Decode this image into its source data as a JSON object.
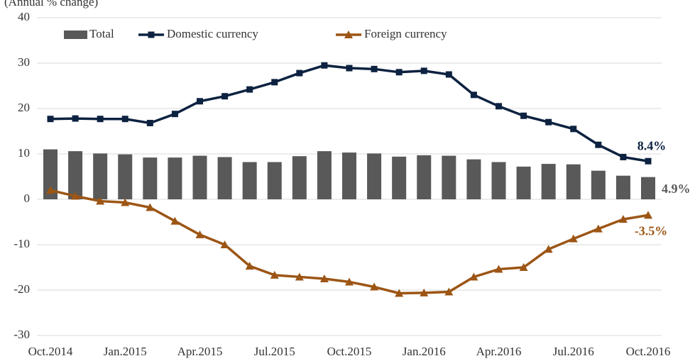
{
  "chart_data": {
    "type": "bar",
    "subtitle": "(Annual % change)",
    "categories": [
      "Oct.2014",
      null,
      null,
      "Jan.2015",
      null,
      null,
      "Apr.2015",
      null,
      null,
      "Jul.2015",
      null,
      null,
      "Oct.2015",
      null,
      null,
      "Jan.2016",
      null,
      null,
      "Apr.2016",
      null,
      null,
      "Jul.2016",
      null,
      null,
      "Oct.2016"
    ],
    "series": [
      {
        "name": "Total",
        "type": "bar",
        "color": "#595959",
        "values": [
          11.0,
          10.6,
          10.1,
          9.9,
          9.2,
          9.2,
          9.6,
          9.3,
          8.2,
          8.2,
          9.5,
          10.6,
          10.3,
          10.1,
          9.4,
          9.7,
          9.6,
          8.8,
          8.2,
          7.2,
          7.8,
          7.7,
          6.3,
          5.2,
          4.9
        ],
        "value_labels": [
          null,
          null,
          null,
          null,
          null,
          null,
          null,
          null,
          null,
          null,
          null,
          null,
          null,
          null,
          null,
          null,
          null,
          null,
          null,
          null,
          null,
          null,
          null,
          null,
          "4.9%"
        ]
      },
      {
        "name": "Domestic currency",
        "type": "line",
        "marker": "square",
        "color": "#0d2240",
        "values": [
          17.7,
          17.8,
          17.7,
          17.7,
          16.8,
          18.8,
          21.6,
          22.7,
          24.2,
          25.8,
          27.8,
          29.5,
          28.9,
          28.7,
          28.0,
          28.3,
          27.5,
          23.0,
          20.5,
          18.4,
          17.0,
          15.5,
          12.0,
          9.3,
          8.4
        ],
        "value_labels": [
          null,
          null,
          null,
          null,
          null,
          null,
          null,
          null,
          null,
          null,
          null,
          null,
          null,
          null,
          null,
          null,
          null,
          null,
          null,
          null,
          null,
          null,
          null,
          null,
          "8.4%"
        ]
      },
      {
        "name": "Foreign currency",
        "type": "line",
        "marker": "triangle",
        "color": "#9c5514",
        "values": [
          2.0,
          0.7,
          -0.4,
          -0.7,
          -1.8,
          -4.8,
          -7.8,
          -10.0,
          -14.7,
          -16.7,
          -17.1,
          -17.5,
          -18.2,
          -19.3,
          -20.7,
          -20.6,
          -20.4,
          -17.1,
          -15.4,
          -15.0,
          -11.0,
          -8.7,
          -6.5,
          -4.4,
          -3.5
        ],
        "value_labels": [
          null,
          null,
          null,
          null,
          null,
          null,
          null,
          null,
          null,
          null,
          null,
          null,
          null,
          null,
          null,
          null,
          null,
          null,
          null,
          null,
          null,
          null,
          null,
          null,
          "-3.5%"
        ]
      }
    ],
    "ylim": [
      -30,
      40
    ],
    "yticks": [
      -30,
      -20,
      -10,
      0,
      10,
      20,
      30,
      40
    ],
    "grid": true,
    "legend": "top-left"
  }
}
